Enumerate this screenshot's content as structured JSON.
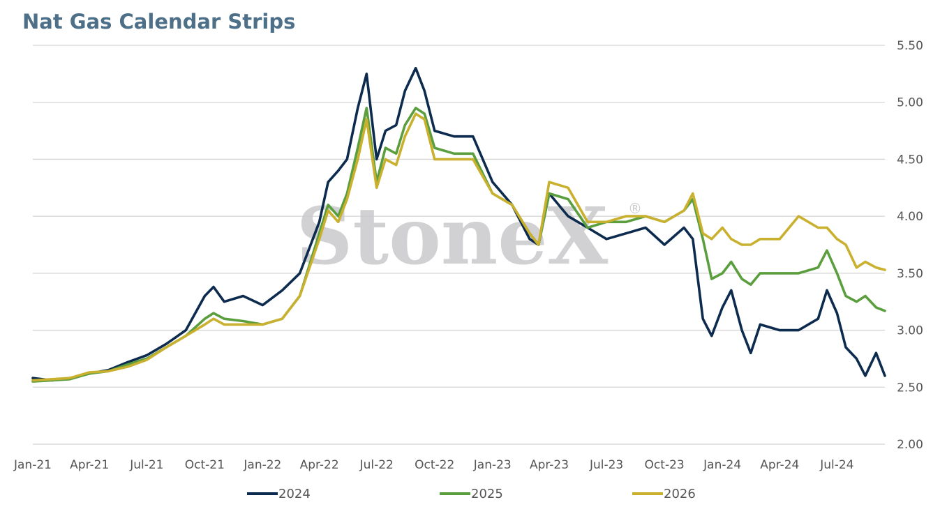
{
  "watermark": "StoneX",
  "watermark_mark": "®",
  "chart_data": {
    "type": "line",
    "title": "Nat Gas Calendar Strips",
    "xlabel": "",
    "ylabel": "",
    "x_ticks": [
      "Jan-21",
      "Apr-21",
      "Jul-21",
      "Oct-21",
      "Jan-22",
      "Apr-22",
      "Jul-22",
      "Oct-22",
      "Jan-23",
      "Apr-23",
      "Jul-23",
      "Oct-23",
      "Jan-24",
      "Apr-24",
      "Jul-24"
    ],
    "y_ticks": [
      "2.00",
      "2.50",
      "3.00",
      "3.50",
      "4.00",
      "4.50",
      "5.00",
      "5.50"
    ],
    "ylim": [
      2.0,
      5.5
    ],
    "y_axis_side": "right",
    "grid": "horizontal",
    "legend_position": "bottom",
    "x": [
      "2021-01-01",
      "2021-02-01",
      "2021-03-01",
      "2021-04-01",
      "2021-05-01",
      "2021-06-01",
      "2021-07-01",
      "2021-08-01",
      "2021-09-01",
      "2021-10-01",
      "2021-10-15",
      "2021-11-01",
      "2021-12-01",
      "2022-01-01",
      "2022-02-01",
      "2022-03-01",
      "2022-04-01",
      "2022-04-15",
      "2022-05-01",
      "2022-05-15",
      "2022-06-01",
      "2022-06-15",
      "2022-07-01",
      "2022-07-15",
      "2022-08-01",
      "2022-08-15",
      "2022-09-01",
      "2022-09-15",
      "2022-10-01",
      "2022-11-01",
      "2022-12-01",
      "2023-01-01",
      "2023-02-01",
      "2023-03-01",
      "2023-03-15",
      "2023-04-01",
      "2023-05-01",
      "2023-06-01",
      "2023-07-01",
      "2023-08-01",
      "2023-09-01",
      "2023-10-01",
      "2023-11-01",
      "2023-11-15",
      "2023-12-01",
      "2023-12-15",
      "2024-01-01",
      "2024-01-15",
      "2024-02-01",
      "2024-02-15",
      "2024-03-01",
      "2024-04-01",
      "2024-05-01",
      "2024-06-01",
      "2024-06-15",
      "2024-07-01",
      "2024-07-15",
      "2024-08-01",
      "2024-08-15",
      "2024-09-01",
      "2024-09-15"
    ],
    "series": [
      {
        "name": "2024",
        "color": "#0d2b4e",
        "values": [
          2.58,
          2.56,
          2.58,
          2.62,
          2.65,
          2.72,
          2.78,
          2.88,
          3.0,
          3.3,
          3.38,
          3.25,
          3.3,
          3.22,
          3.35,
          3.5,
          3.95,
          4.3,
          4.4,
          4.5,
          4.95,
          5.25,
          4.5,
          4.75,
          4.8,
          5.1,
          5.3,
          5.1,
          4.75,
          4.7,
          4.7,
          4.3,
          4.1,
          3.8,
          3.75,
          4.2,
          4.0,
          3.9,
          3.8,
          3.85,
          3.9,
          3.75,
          3.9,
          3.8,
          3.1,
          2.95,
          3.2,
          3.35,
          3.0,
          2.8,
          3.05,
          3.0,
          3.0,
          3.1,
          3.35,
          3.15,
          2.85,
          2.75,
          2.6,
          2.8,
          2.6
        ]
      },
      {
        "name": "2025",
        "color": "#5b9e3e",
        "values": [
          2.55,
          2.56,
          2.57,
          2.62,
          2.64,
          2.7,
          2.75,
          2.85,
          2.95,
          3.1,
          3.15,
          3.1,
          3.08,
          3.05,
          3.1,
          3.3,
          3.85,
          4.1,
          4.0,
          4.2,
          4.6,
          4.95,
          4.3,
          4.6,
          4.55,
          4.8,
          4.95,
          4.9,
          4.6,
          4.55,
          4.55,
          4.2,
          4.1,
          3.85,
          3.75,
          4.2,
          4.15,
          3.9,
          3.95,
          3.95,
          4.0,
          3.95,
          4.05,
          4.15,
          3.8,
          3.45,
          3.5,
          3.6,
          3.45,
          3.4,
          3.5,
          3.5,
          3.5,
          3.55,
          3.7,
          3.5,
          3.3,
          3.25,
          3.3,
          3.2,
          3.17
        ]
      },
      {
        "name": "2026",
        "color": "#c9b02e",
        "values": [
          2.56,
          2.57,
          2.58,
          2.63,
          2.64,
          2.68,
          2.74,
          2.85,
          2.95,
          3.05,
          3.1,
          3.05,
          3.05,
          3.05,
          3.1,
          3.3,
          3.8,
          4.05,
          3.95,
          4.15,
          4.5,
          4.85,
          4.25,
          4.5,
          4.45,
          4.7,
          4.9,
          4.85,
          4.5,
          4.5,
          4.5,
          4.2,
          4.1,
          3.85,
          3.75,
          4.3,
          4.25,
          3.95,
          3.95,
          4.0,
          4.0,
          3.95,
          4.05,
          4.2,
          3.85,
          3.8,
          3.9,
          3.8,
          3.75,
          3.75,
          3.8,
          3.8,
          4.0,
          3.9,
          3.9,
          3.8,
          3.75,
          3.55,
          3.6,
          3.55,
          3.53
        ]
      }
    ]
  }
}
